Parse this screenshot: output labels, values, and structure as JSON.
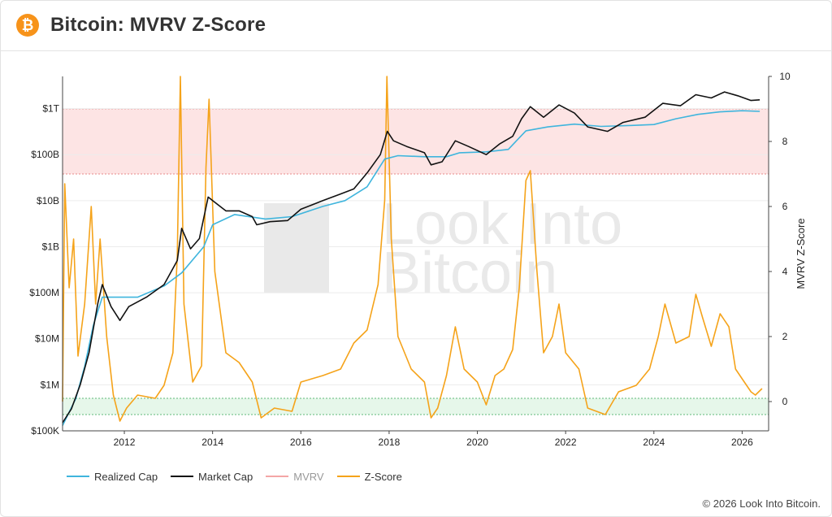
{
  "header": {
    "title": "Bitcoin: MVRV Z-Score",
    "icon": "bitcoin-logo-icon",
    "icon_glyph": "₿",
    "icon_color": "#f7931a"
  },
  "watermark": {
    "line1": "Look Into",
    "line2": "Bitcoin"
  },
  "copyright": "© 2026 Look Into Bitcoin.",
  "legend": [
    {
      "label": "Realized Cap",
      "color": "#3fb5dd"
    },
    {
      "label": "Market Cap",
      "color": "#111111"
    },
    {
      "label": "MVRV",
      "color": "#f4a6a6"
    },
    {
      "label": "Z-Score",
      "color": "#f5a31a"
    }
  ],
  "chart_data": {
    "type": "line",
    "x_axis": {
      "ticks": [
        "2012",
        "2014",
        "2016",
        "2018",
        "2020",
        "2022",
        "2024",
        "2026"
      ],
      "range": [
        "2010-08",
        "2026-09"
      ]
    },
    "y_left": {
      "scale": "log",
      "ticks": [
        "$100K",
        "$1M",
        "$10M",
        "$100M",
        "$1B",
        "$10B",
        "$100B",
        "$1T"
      ],
      "range": [
        100000,
        5000000000000
      ]
    },
    "y_right": {
      "label": "MVRV Z-Score",
      "ticks": [
        "0",
        "2",
        "4",
        "6",
        "8",
        "10"
      ],
      "range": [
        -0.9,
        10
      ]
    },
    "bands": [
      {
        "name": "red-zone",
        "axis": "right",
        "from": 7,
        "to": 9.0,
        "color": "#fde4e4",
        "border": "#e88a8a"
      },
      {
        "name": "green-zone",
        "axis": "right",
        "from": -0.4,
        "to": 0.1,
        "color": "#e6f7ea",
        "border": "#5fb878"
      }
    ],
    "series": [
      {
        "name": "Market Cap",
        "axis": "left",
        "color": "#111111",
        "points": [
          [
            2010.6,
            150000
          ],
          [
            2010.8,
            300000
          ],
          [
            2011.0,
            1000000
          ],
          [
            2011.2,
            5000000
          ],
          [
            2011.4,
            60000000
          ],
          [
            2011.5,
            150000000
          ],
          [
            2011.7,
            50000000
          ],
          [
            2011.9,
            25000000
          ],
          [
            2012.1,
            50000000
          ],
          [
            2012.5,
            80000000
          ],
          [
            2012.9,
            150000000
          ],
          [
            2013.2,
            500000000
          ],
          [
            2013.3,
            2500000000
          ],
          [
            2013.5,
            900000000
          ],
          [
            2013.7,
            1500000000
          ],
          [
            2013.9,
            12000000000
          ],
          [
            2014.0,
            10000000000
          ],
          [
            2014.3,
            6000000000
          ],
          [
            2014.6,
            6000000000
          ],
          [
            2014.9,
            4500000000
          ],
          [
            2015.0,
            3000000000
          ],
          [
            2015.3,
            3500000000
          ],
          [
            2015.7,
            3700000000
          ],
          [
            2016.0,
            6500000000
          ],
          [
            2016.5,
            10000000000
          ],
          [
            2016.9,
            14000000000
          ],
          [
            2017.2,
            18000000000
          ],
          [
            2017.5,
            40000000000
          ],
          [
            2017.8,
            100000000000
          ],
          [
            2017.96,
            320000000000
          ],
          [
            2018.1,
            200000000000
          ],
          [
            2018.4,
            150000000000
          ],
          [
            2018.8,
            110000000000
          ],
          [
            2018.95,
            60000000000
          ],
          [
            2019.2,
            70000000000
          ],
          [
            2019.5,
            200000000000
          ],
          [
            2019.8,
            150000000000
          ],
          [
            2020.2,
            100000000000
          ],
          [
            2020.5,
            170000000000
          ],
          [
            2020.8,
            250000000000
          ],
          [
            2021.0,
            600000000000
          ],
          [
            2021.2,
            1100000000000
          ],
          [
            2021.5,
            650000000000
          ],
          [
            2021.85,
            1200000000000
          ],
          [
            2022.2,
            800000000000
          ],
          [
            2022.5,
            400000000000
          ],
          [
            2022.95,
            320000000000
          ],
          [
            2023.3,
            500000000000
          ],
          [
            2023.8,
            650000000000
          ],
          [
            2024.2,
            1300000000000
          ],
          [
            2024.6,
            1150000000000
          ],
          [
            2024.95,
            2000000000000
          ],
          [
            2025.3,
            1700000000000
          ],
          [
            2025.6,
            2300000000000
          ],
          [
            2025.9,
            1900000000000
          ],
          [
            2026.2,
            1500000000000
          ],
          [
            2026.4,
            1550000000000
          ]
        ]
      },
      {
        "name": "Realized Cap",
        "axis": "left",
        "color": "#3fb5dd",
        "points": [
          [
            2010.6,
            130000
          ],
          [
            2010.9,
            500000
          ],
          [
            2011.1,
            2500000
          ],
          [
            2011.3,
            20000000
          ],
          [
            2011.5,
            80000000
          ],
          [
            2011.8,
            80000000
          ],
          [
            2012.3,
            80000000
          ],
          [
            2012.9,
            140000000
          ],
          [
            2013.3,
            270000000
          ],
          [
            2013.8,
            1000000000
          ],
          [
            2014.0,
            3000000000
          ],
          [
            2014.5,
            5000000000
          ],
          [
            2015.2,
            4000000000
          ],
          [
            2015.8,
            4500000000
          ],
          [
            2016.5,
            7500000000
          ],
          [
            2017.0,
            10000000000
          ],
          [
            2017.5,
            20000000000
          ],
          [
            2017.9,
            80000000000
          ],
          [
            2018.2,
            95000000000
          ],
          [
            2018.8,
            90000000000
          ],
          [
            2019.3,
            90000000000
          ],
          [
            2019.6,
            110000000000
          ],
          [
            2020.2,
            115000000000
          ],
          [
            2020.7,
            130000000000
          ],
          [
            2021.1,
            330000000000
          ],
          [
            2021.6,
            400000000000
          ],
          [
            2022.2,
            460000000000
          ],
          [
            2022.8,
            410000000000
          ],
          [
            2023.5,
            430000000000
          ],
          [
            2024.0,
            450000000000
          ],
          [
            2024.5,
            600000000000
          ],
          [
            2025.0,
            750000000000
          ],
          [
            2025.5,
            850000000000
          ],
          [
            2026.0,
            900000000000
          ],
          [
            2026.4,
            870000000000
          ]
        ]
      },
      {
        "name": "Z-Score",
        "axis": "right",
        "color": "#f5a31a",
        "points": [
          [
            2010.6,
            0.0
          ],
          [
            2010.65,
            6.7
          ],
          [
            2010.75,
            3.5
          ],
          [
            2010.85,
            5.0
          ],
          [
            2010.95,
            1.4
          ],
          [
            2011.1,
            3.0
          ],
          [
            2011.25,
            6.0
          ],
          [
            2011.35,
            3.0
          ],
          [
            2011.45,
            5.0
          ],
          [
            2011.6,
            2.0
          ],
          [
            2011.75,
            0.2
          ],
          [
            2011.9,
            -0.6
          ],
          [
            2012.05,
            -0.2
          ],
          [
            2012.3,
            0.2
          ],
          [
            2012.7,
            0.1
          ],
          [
            2012.9,
            0.5
          ],
          [
            2013.1,
            1.5
          ],
          [
            2013.2,
            4.5
          ],
          [
            2013.27,
            10.0
          ],
          [
            2013.35,
            3.0
          ],
          [
            2013.55,
            0.6
          ],
          [
            2013.75,
            1.1
          ],
          [
            2013.85,
            7.2
          ],
          [
            2013.92,
            9.3
          ],
          [
            2014.05,
            4.0
          ],
          [
            2014.3,
            1.5
          ],
          [
            2014.6,
            1.2
          ],
          [
            2014.9,
            0.6
          ],
          [
            2015.1,
            -0.5
          ],
          [
            2015.4,
            -0.2
          ],
          [
            2015.8,
            -0.3
          ],
          [
            2016.0,
            0.6
          ],
          [
            2016.5,
            0.8
          ],
          [
            2016.9,
            1.0
          ],
          [
            2017.2,
            1.8
          ],
          [
            2017.5,
            2.2
          ],
          [
            2017.75,
            3.6
          ],
          [
            2017.9,
            6.2
          ],
          [
            2017.95,
            10.0
          ],
          [
            2018.05,
            5.0
          ],
          [
            2018.2,
            2.0
          ],
          [
            2018.5,
            1.0
          ],
          [
            2018.8,
            0.6
          ],
          [
            2018.95,
            -0.5
          ],
          [
            2019.1,
            -0.2
          ],
          [
            2019.3,
            0.8
          ],
          [
            2019.5,
            2.3
          ],
          [
            2019.7,
            1.0
          ],
          [
            2020.0,
            0.6
          ],
          [
            2020.2,
            -0.1
          ],
          [
            2020.4,
            0.8
          ],
          [
            2020.6,
            1.0
          ],
          [
            2020.8,
            1.6
          ],
          [
            2020.95,
            3.5
          ],
          [
            2021.1,
            6.8
          ],
          [
            2021.2,
            7.1
          ],
          [
            2021.35,
            4.0
          ],
          [
            2021.5,
            1.5
          ],
          [
            2021.7,
            2.0
          ],
          [
            2021.85,
            3.0
          ],
          [
            2022.0,
            1.5
          ],
          [
            2022.3,
            1.0
          ],
          [
            2022.5,
            -0.2
          ],
          [
            2022.9,
            -0.4
          ],
          [
            2023.2,
            0.3
          ],
          [
            2023.6,
            0.5
          ],
          [
            2023.9,
            1.0
          ],
          [
            2024.1,
            2.0
          ],
          [
            2024.25,
            3.0
          ],
          [
            2024.5,
            1.8
          ],
          [
            2024.8,
            2.0
          ],
          [
            2024.95,
            3.3
          ],
          [
            2025.1,
            2.6
          ],
          [
            2025.3,
            1.7
          ],
          [
            2025.5,
            2.7
          ],
          [
            2025.7,
            2.3
          ],
          [
            2025.85,
            1.0
          ],
          [
            2026.0,
            0.7
          ],
          [
            2026.2,
            0.3
          ],
          [
            2026.3,
            0.2
          ],
          [
            2026.45,
            0.4
          ]
        ]
      }
    ]
  }
}
